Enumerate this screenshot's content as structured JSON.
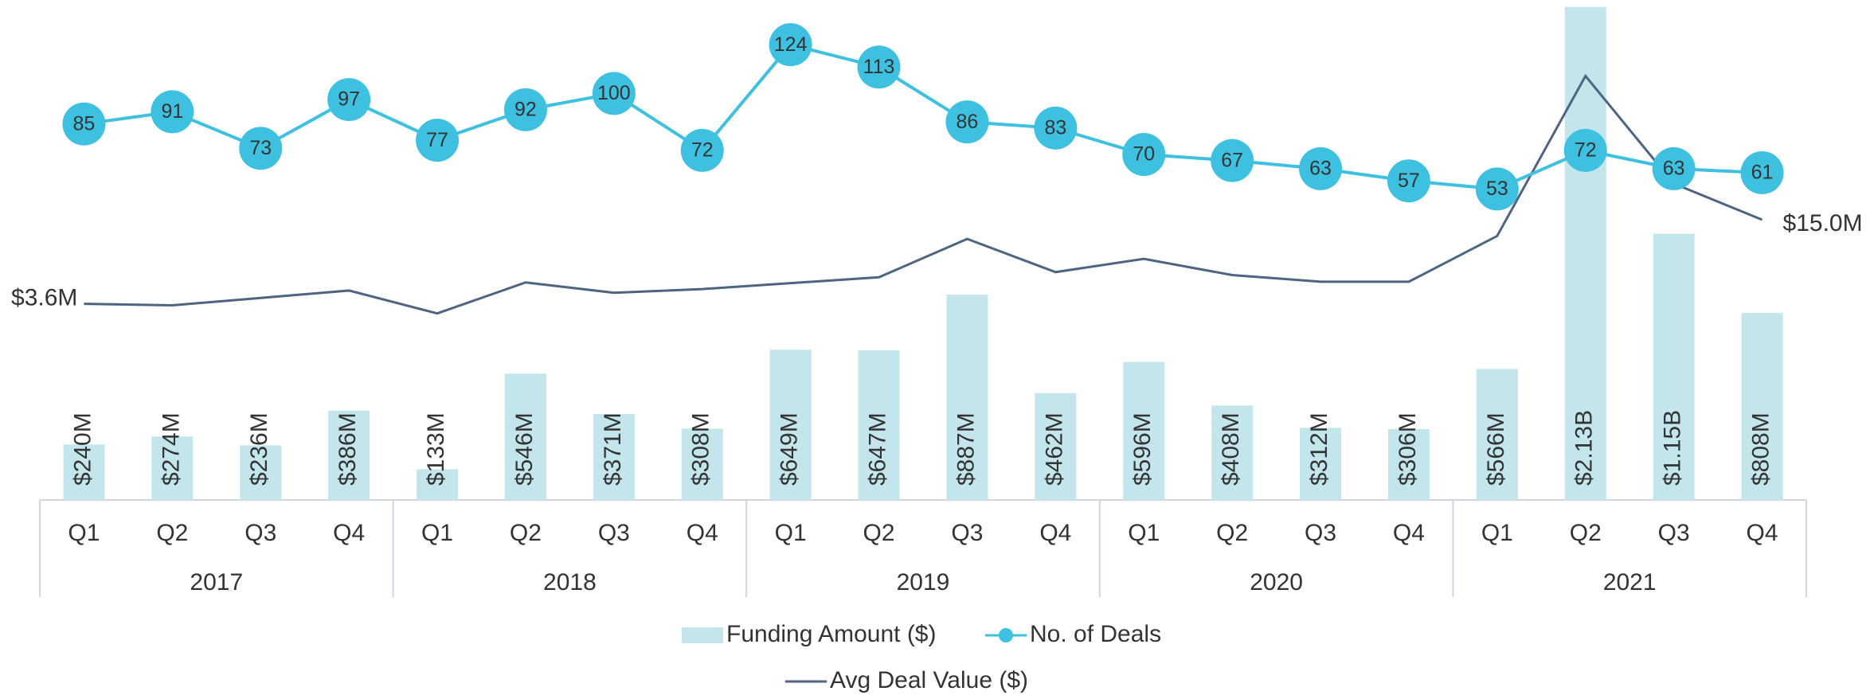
{
  "chart_data": {
    "type": "combo",
    "categories": [
      "Q1",
      "Q2",
      "Q3",
      "Q4",
      "Q1",
      "Q2",
      "Q3",
      "Q4",
      "Q1",
      "Q2",
      "Q3",
      "Q4",
      "Q1",
      "Q2",
      "Q3",
      "Q4",
      "Q1",
      "Q2",
      "Q3",
      "Q4"
    ],
    "category_groups": [
      "2017",
      "2018",
      "2019",
      "2020",
      "2021"
    ],
    "series": [
      {
        "name": "Funding Amount ($)",
        "type": "bar",
        "color": "#c3e6ec",
        "ylim": [
          0,
          2160000000
        ],
        "values": [
          240000000,
          274000000,
          236000000,
          386000000,
          133000000,
          546000000,
          371000000,
          308000000,
          649000000,
          647000000,
          887000000,
          462000000,
          596000000,
          408000000,
          312000000,
          306000000,
          566000000,
          2130000000,
          1150000000,
          808000000
        ],
        "value_labels": [
          "$240M",
          "$274M",
          "$236M",
          "$386M",
          "$133M",
          "$546M",
          "$371M",
          "$308M",
          "$649M",
          "$647M",
          "$887M",
          "$462M",
          "$596M",
          "$408M",
          "$312M",
          "$306M",
          "$566M",
          "$2.13B",
          "$1.15B",
          "$808M"
        ]
      },
      {
        "name": "No. of Deals",
        "type": "line",
        "markers": true,
        "color": "#3ec1e1",
        "ylim": [
          -100,
          146
        ],
        "values": [
          85,
          91,
          73,
          97,
          77,
          92,
          100,
          72,
          124,
          113,
          86,
          83,
          70,
          67,
          63,
          57,
          53,
          72,
          63,
          61
        ]
      },
      {
        "name": "Avg Deal Value ($)",
        "type": "line",
        "markers": false,
        "color": "#4d6483",
        "ylim": [
          -23000000,
          44800000
        ],
        "values": [
          3600000,
          3400000,
          4400000,
          5400000,
          2300000,
          6500000,
          5100000,
          5600000,
          6400000,
          7200000,
          12400000,
          7900000,
          9700000,
          7500000,
          6600000,
          6600000,
          12800000,
          34500000,
          19900000,
          15000000
        ],
        "value_labels": [
          "$3.6M",
          null,
          null,
          null,
          null,
          null,
          null,
          null,
          null,
          null,
          null,
          null,
          null,
          null,
          null,
          null,
          null,
          null,
          null,
          "$15.0M"
        ]
      }
    ]
  }
}
